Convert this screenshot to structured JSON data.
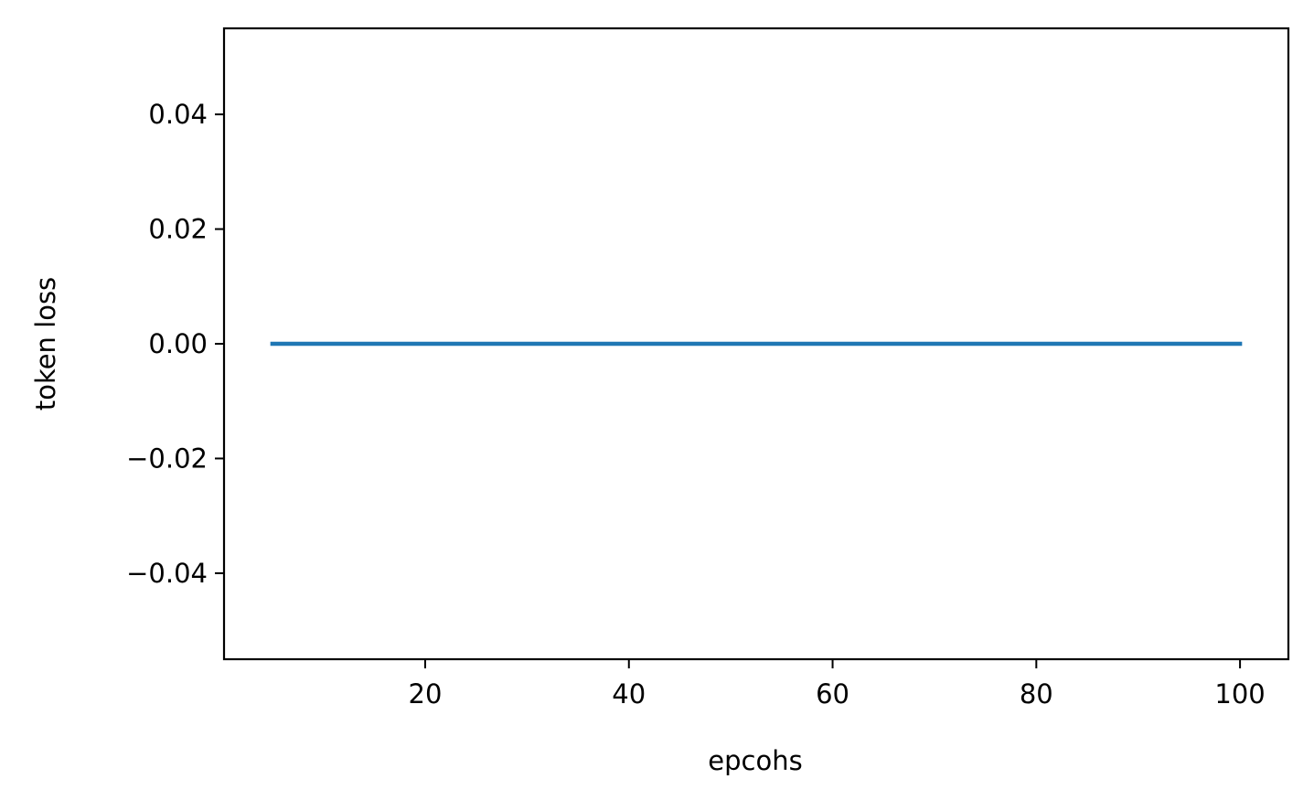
{
  "chart_data": {
    "type": "line",
    "title": "",
    "xlabel": "epcohs",
    "ylabel": "token loss",
    "xlim": [
      0.25,
      104.75
    ],
    "ylim": [
      -0.055,
      0.055
    ],
    "xticks": [
      20,
      40,
      60,
      80,
      100
    ],
    "xtick_labels": [
      "20",
      "40",
      "60",
      "80",
      "100"
    ],
    "yticks": [
      -0.04,
      -0.02,
      0.0,
      0.02,
      0.04
    ],
    "ytick_labels": [
      "−0.04",
      "−0.02",
      "0.00",
      "0.02",
      "0.04"
    ],
    "grid": false,
    "series": [
      {
        "color": "#1f77b4",
        "x": [
          5,
          10,
          15,
          20,
          25,
          30,
          35,
          40,
          45,
          50,
          55,
          60,
          65,
          70,
          75,
          80,
          85,
          90,
          95,
          100
        ],
        "y": [
          0,
          0,
          0,
          0,
          0,
          0,
          0,
          0,
          0,
          0,
          0,
          0,
          0,
          0,
          0,
          0,
          0,
          0,
          0,
          0
        ]
      }
    ]
  }
}
